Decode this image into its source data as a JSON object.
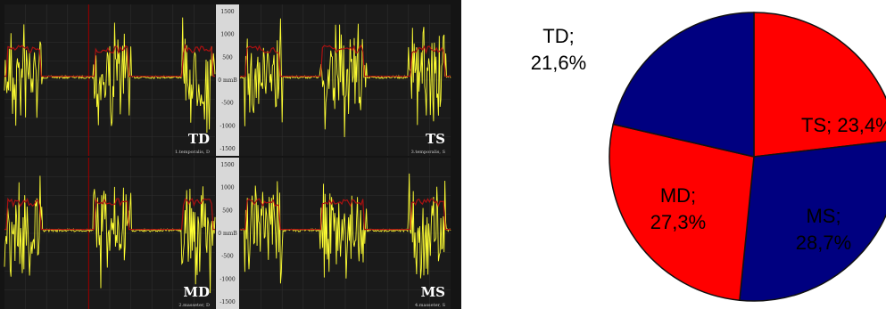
{
  "emg_panel": {
    "scale_ticks_top": [
      "1500",
      "1000",
      "500",
      "0 mmB",
      "-500",
      "-1000",
      "-1500"
    ],
    "scale_ticks_bottom": [
      "1500",
      "1000",
      "500",
      "0 mmB",
      "-500",
      "-1000",
      "-1500"
    ],
    "channels": [
      {
        "code": "TD",
        "caption": "1.temporalis, D"
      },
      {
        "code": "TS",
        "caption": "3.temporalis, S"
      },
      {
        "code": "MD",
        "caption": "2.masseter, D"
      },
      {
        "code": "MS",
        "caption": "4.masseter, S"
      }
    ],
    "colors": {
      "background": "#1a1a1a",
      "grid": "#2e2e2e",
      "signal": "#ffff33",
      "envelope": "#aa1111",
      "marker": "#8b0000"
    }
  },
  "chart_data": {
    "type": "pie",
    "title": "",
    "slices": [
      {
        "label": "TS; 23,4%",
        "value": 23.4,
        "color": "#ff0000"
      },
      {
        "label": "MS;\n28,7%",
        "value": 28.7,
        "color": "#000080"
      },
      {
        "label": "MD;\n27,3%",
        "value": 27.3,
        "color": "#ff0000"
      },
      {
        "label": "TD;\n21,6%",
        "value": 21.6,
        "color": "#000080"
      }
    ],
    "start": "12 o'clock",
    "direction": "clockwise",
    "legend": "none"
  }
}
